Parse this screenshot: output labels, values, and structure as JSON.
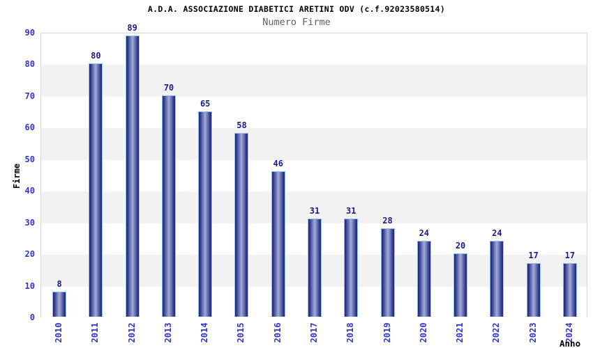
{
  "chart_data": {
    "type": "bar",
    "title": "A.D.A. ASSOCIAZIONE DIABETICI ARETINI ODV (c.f.92023580514)",
    "subtitle": "Numero Firme",
    "xlabel": "Anno",
    "ylabel": "Firme",
    "categories": [
      "2010",
      "2011",
      "2012",
      "2013",
      "2014",
      "2015",
      "2016",
      "2017",
      "2018",
      "2019",
      "2020",
      "2021",
      "2022",
      "2023",
      "2024"
    ],
    "values": [
      8,
      80,
      89,
      70,
      65,
      58,
      46,
      31,
      31,
      28,
      24,
      20,
      24,
      17,
      17
    ],
    "ylim": [
      0,
      90
    ],
    "ytick_step": 10,
    "legend": "none",
    "grid": "alternating-horizontal-bands",
    "colors": {
      "title": "#000000",
      "subtitle": "#606060",
      "axis_title": "#000000",
      "tick_label": "#3333cc",
      "value_label": "#1a1a8c",
      "bar_dark": "#222d80",
      "bar_light": "#a3acda",
      "bar_border": "#94c2ec",
      "band_white": "#ffffff",
      "band_gray": "#f2f2f2",
      "plot_border": "#d6d6d6",
      "background": "#ffffff"
    }
  }
}
